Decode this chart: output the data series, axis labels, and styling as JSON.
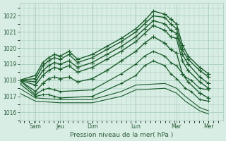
{
  "xlabel": "Pression niveau de la mer( hPa )",
  "background_color": "#d8ede4",
  "grid_color": "#aacfbf",
  "line_color": "#1a5c2a",
  "tick_label_color": "#2a5c3a",
  "xlim": [
    0.0,
    7.0
  ],
  "ylim": [
    1015.5,
    1022.8
  ],
  "yticks": [
    1016,
    1017,
    1018,
    1019,
    1020,
    1021,
    1022
  ],
  "xtick_positions": [
    0.55,
    1.4,
    2.5,
    4.0,
    5.4,
    6.5
  ],
  "xtick_labels": [
    "Sam",
    "Jeu",
    "Dim",
    "Lun",
    "Mar",
    "Mer"
  ],
  "series": [
    {
      "x": [
        0.0,
        0.55,
        0.8,
        1.0,
        1.2,
        1.4,
        1.7,
        2.0,
        2.5,
        3.0,
        3.5,
        4.0,
        4.3,
        4.6,
        5.0,
        5.2,
        5.4,
        5.6,
        5.8,
        6.2,
        6.5
      ],
      "y": [
        1018.0,
        1018.3,
        1019.1,
        1019.4,
        1019.6,
        1019.5,
        1019.8,
        1019.3,
        1019.6,
        1020.1,
        1020.6,
        1021.2,
        1021.7,
        1022.3,
        1022.1,
        1021.8,
        1021.5,
        1020.2,
        1019.5,
        1018.8,
        1018.4
      ],
      "style": "-",
      "marker": "+",
      "lw": 1.0,
      "ms": 4
    },
    {
      "x": [
        0.0,
        0.55,
        0.8,
        1.0,
        1.2,
        1.4,
        1.7,
        2.0,
        2.5,
        3.0,
        3.5,
        4.0,
        4.3,
        4.6,
        5.0,
        5.2,
        5.4,
        5.6,
        5.8,
        6.2,
        6.5
      ],
      "y": [
        1018.0,
        1018.1,
        1018.9,
        1019.2,
        1019.4,
        1019.3,
        1019.6,
        1019.1,
        1019.4,
        1019.9,
        1020.4,
        1021.0,
        1021.5,
        1022.0,
        1021.9,
        1021.5,
        1021.2,
        1019.9,
        1019.3,
        1018.6,
        1018.2
      ],
      "style": "-",
      "marker": "+",
      "lw": 1.0,
      "ms": 4
    },
    {
      "x": [
        0.0,
        0.55,
        0.8,
        1.0,
        1.2,
        1.4,
        1.7,
        2.0,
        2.5,
        3.0,
        3.5,
        4.0,
        4.3,
        4.6,
        5.0,
        5.2,
        5.4,
        5.6,
        5.8,
        6.2,
        6.5
      ],
      "y": [
        1018.0,
        1017.9,
        1018.6,
        1018.9,
        1019.1,
        1019.0,
        1019.2,
        1018.8,
        1019.1,
        1019.6,
        1020.1,
        1020.7,
        1021.2,
        1021.7,
        1021.5,
        1021.1,
        1020.9,
        1019.6,
        1019.0,
        1018.2,
        1017.8
      ],
      "style": "-",
      "marker": "+",
      "lw": 1.0,
      "ms": 4
    },
    {
      "x": [
        0.0,
        0.55,
        0.8,
        1.0,
        1.2,
        1.4,
        1.7,
        2.0,
        2.5,
        3.0,
        3.5,
        4.0,
        4.3,
        4.6,
        5.0,
        5.2,
        5.4,
        5.6,
        5.8,
        6.2,
        6.5
      ],
      "y": [
        1018.0,
        1017.7,
        1018.3,
        1018.6,
        1018.8,
        1018.7,
        1018.9,
        1018.5,
        1018.8,
        1019.3,
        1019.8,
        1020.4,
        1020.9,
        1021.4,
        1021.1,
        1020.7,
        1020.6,
        1019.2,
        1018.6,
        1017.9,
        1017.5
      ],
      "style": "-",
      "marker": "+",
      "lw": 1.0,
      "ms": 4
    },
    {
      "x": [
        0.0,
        0.55,
        0.8,
        1.0,
        1.2,
        1.4,
        1.7,
        2.0,
        2.5,
        3.0,
        3.5,
        4.0,
        4.3,
        4.6,
        5.0,
        5.2,
        5.4,
        5.6,
        5.8,
        6.2,
        6.5
      ],
      "y": [
        1018.0,
        1017.3,
        1017.8,
        1018.1,
        1018.2,
        1018.1,
        1018.2,
        1017.9,
        1018.1,
        1018.6,
        1019.2,
        1019.8,
        1020.3,
        1020.7,
        1020.3,
        1019.9,
        1019.7,
        1018.4,
        1017.9,
        1017.2,
        1016.9
      ],
      "style": "-",
      "marker": "+",
      "lw": 1.0,
      "ms": 4
    },
    {
      "x": [
        0.0,
        0.55,
        0.8,
        1.0,
        1.2,
        1.4,
        2.5,
        3.5,
        4.0,
        4.3,
        4.6,
        5.0,
        5.2,
        5.4,
        5.7,
        5.9,
        6.2,
        6.5
      ],
      "y": [
        1018.0,
        1017.1,
        1017.4,
        1017.5,
        1017.4,
        1017.3,
        1017.4,
        1018.4,
        1019.0,
        1019.5,
        1019.8,
        1019.5,
        1019.1,
        1018.9,
        1018.2,
        1018.0,
        1017.5,
        1017.4
      ],
      "style": "-",
      "marker": "+",
      "lw": 0.9,
      "ms": 3
    },
    {
      "x": [
        0.0,
        0.55,
        0.8,
        1.0,
        1.2,
        1.4,
        2.5,
        3.5,
        4.0,
        4.3,
        4.6,
        5.0,
        5.2,
        5.4,
        5.7,
        5.9,
        6.2,
        6.5
      ],
      "y": [
        1017.8,
        1017.0,
        1017.1,
        1017.1,
        1017.0,
        1016.9,
        1017.0,
        1017.8,
        1018.3,
        1018.9,
        1019.2,
        1018.9,
        1018.4,
        1018.1,
        1017.5,
        1017.3,
        1016.8,
        1016.7
      ],
      "style": "-",
      "marker": "+",
      "lw": 0.9,
      "ms": 3
    },
    {
      "x": [
        0.0,
        0.55,
        1.4,
        2.5,
        3.5,
        4.0,
        5.0,
        5.4,
        5.7,
        6.2,
        6.5
      ],
      "y": [
        1017.5,
        1016.9,
        1016.8,
        1016.8,
        1017.3,
        1017.7,
        1017.8,
        1017.5,
        1017.0,
        1016.3,
        1016.1
      ],
      "style": "-",
      "marker": null,
      "lw": 0.8,
      "ms": 0
    },
    {
      "x": [
        0.0,
        0.55,
        1.4,
        2.5,
        3.5,
        4.0,
        5.0,
        5.4,
        5.7,
        6.2,
        6.5
      ],
      "y": [
        1017.2,
        1016.7,
        1016.6,
        1016.6,
        1017.0,
        1017.4,
        1017.5,
        1017.2,
        1016.7,
        1016.1,
        1015.9
      ],
      "style": "-",
      "marker": null,
      "lw": 0.8,
      "ms": 0
    }
  ]
}
